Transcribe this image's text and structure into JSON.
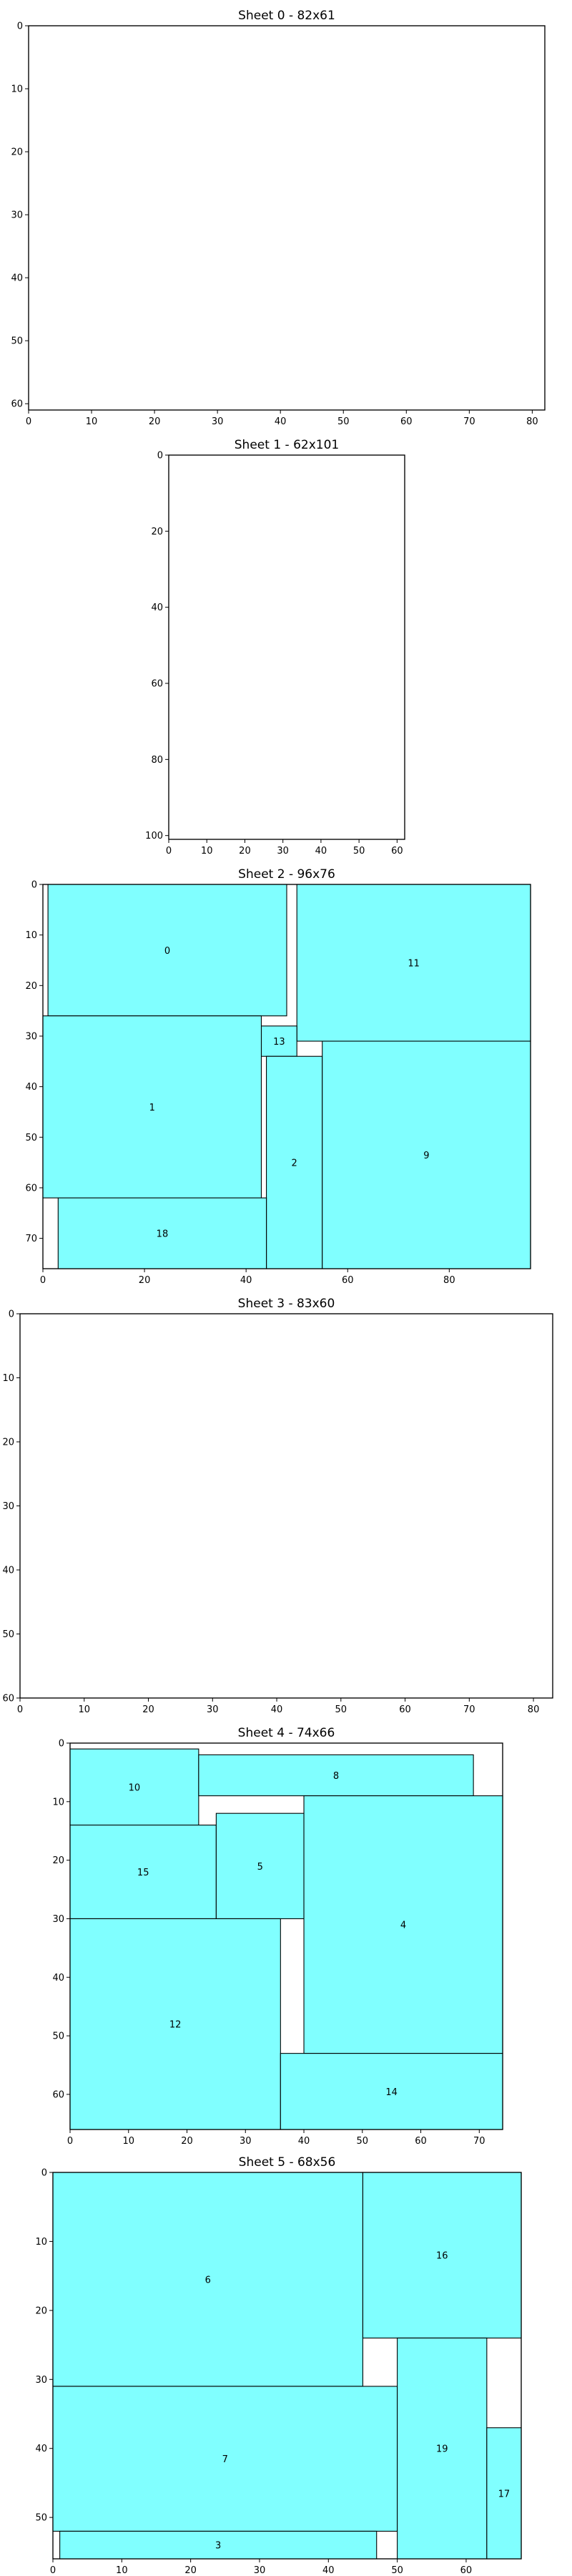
{
  "colors": {
    "piece_fill": "#80ffff",
    "piece_stroke": "#000000",
    "background": "#ffffff"
  },
  "chart_data": [
    {
      "type": "packing",
      "title": "Sheet 0 - 82x61",
      "sheet_width": 82,
      "sheet_height": 61,
      "xlim": [
        0,
        82
      ],
      "ylim": [
        61,
        0
      ],
      "xticks": [
        0,
        10,
        20,
        30,
        40,
        50,
        60,
        70,
        80
      ],
      "yticks": [
        0,
        10,
        20,
        30,
        40,
        50,
        60
      ],
      "pieces": []
    },
    {
      "type": "packing",
      "title": "Sheet 1 - 62x101",
      "sheet_width": 62,
      "sheet_height": 101,
      "xlim": [
        0,
        62
      ],
      "ylim": [
        101,
        0
      ],
      "xticks": [
        0,
        10,
        20,
        30,
        40,
        50,
        60
      ],
      "yticks": [
        0,
        20,
        40,
        60,
        80,
        100
      ],
      "pieces": []
    },
    {
      "type": "packing",
      "title": "Sheet 2 - 96x76",
      "sheet_width": 96,
      "sheet_height": 76,
      "xlim": [
        0,
        96
      ],
      "ylim": [
        76,
        0
      ],
      "xticks": [
        0,
        20,
        40,
        60,
        80
      ],
      "yticks": [
        0,
        10,
        20,
        30,
        40,
        50,
        60,
        70
      ],
      "pieces": [
        {
          "id": "0",
          "x": 1,
          "y": 0,
          "w": 47,
          "h": 26
        },
        {
          "id": "11",
          "x": 50,
          "y": 0,
          "w": 46,
          "h": 31
        },
        {
          "id": "13",
          "x": 43,
          "y": 28,
          "w": 7,
          "h": 6
        },
        {
          "id": "1",
          "x": 0,
          "y": 26,
          "w": 43,
          "h": 36
        },
        {
          "id": "2",
          "x": 44,
          "y": 34,
          "w": 11,
          "h": 42
        },
        {
          "id": "9",
          "x": 55,
          "y": 31,
          "w": 41,
          "h": 45
        },
        {
          "id": "18",
          "x": 3,
          "y": 62,
          "w": 41,
          "h": 14
        }
      ]
    },
    {
      "type": "packing",
      "title": "Sheet 3 - 83x60",
      "sheet_width": 83,
      "sheet_height": 60,
      "xlim": [
        0,
        83
      ],
      "ylim": [
        60,
        0
      ],
      "xticks": [
        0,
        10,
        20,
        30,
        40,
        50,
        60,
        70,
        80
      ],
      "yticks": [
        0,
        10,
        20,
        30,
        40,
        50,
        60
      ],
      "pieces": []
    },
    {
      "type": "packing",
      "title": "Sheet 4 - 74x66",
      "sheet_width": 74,
      "sheet_height": 66,
      "xlim": [
        0,
        74
      ],
      "ylim": [
        66,
        0
      ],
      "xticks": [
        0,
        10,
        20,
        30,
        40,
        50,
        60,
        70
      ],
      "yticks": [
        0,
        10,
        20,
        30,
        40,
        50,
        60
      ],
      "pieces": [
        {
          "id": "10",
          "x": 0,
          "y": 1,
          "w": 22,
          "h": 13
        },
        {
          "id": "8",
          "x": 22,
          "y": 2,
          "w": 47,
          "h": 7
        },
        {
          "id": "15",
          "x": 0,
          "y": 14,
          "w": 25,
          "h": 16
        },
        {
          "id": "5",
          "x": 25,
          "y": 12,
          "w": 15,
          "h": 18
        },
        {
          "id": "4",
          "x": 40,
          "y": 9,
          "w": 34,
          "h": 44
        },
        {
          "id": "12",
          "x": 0,
          "y": 30,
          "w": 36,
          "h": 36
        },
        {
          "id": "14",
          "x": 36,
          "y": 53,
          "w": 38,
          "h": 13
        }
      ]
    },
    {
      "type": "packing",
      "title": "Sheet 5 - 68x56",
      "sheet_width": 68,
      "sheet_height": 56,
      "xlim": [
        0,
        68
      ],
      "ylim": [
        56,
        0
      ],
      "xticks": [
        0,
        10,
        20,
        30,
        40,
        50,
        60
      ],
      "yticks": [
        0,
        10,
        20,
        30,
        40,
        50
      ],
      "pieces": [
        {
          "id": "6",
          "x": 0,
          "y": 0,
          "w": 45,
          "h": 31
        },
        {
          "id": "16",
          "x": 45,
          "y": 0,
          "w": 23,
          "h": 24
        },
        {
          "id": "7",
          "x": 0,
          "y": 31,
          "w": 50,
          "h": 21
        },
        {
          "id": "19",
          "x": 50,
          "y": 24,
          "w": 13,
          "h": 32
        },
        {
          "id": "17",
          "x": 63,
          "y": 37,
          "w": 5,
          "h": 19
        },
        {
          "id": "3",
          "x": 1,
          "y": 52,
          "w": 46,
          "h": 4
        }
      ]
    }
  ]
}
